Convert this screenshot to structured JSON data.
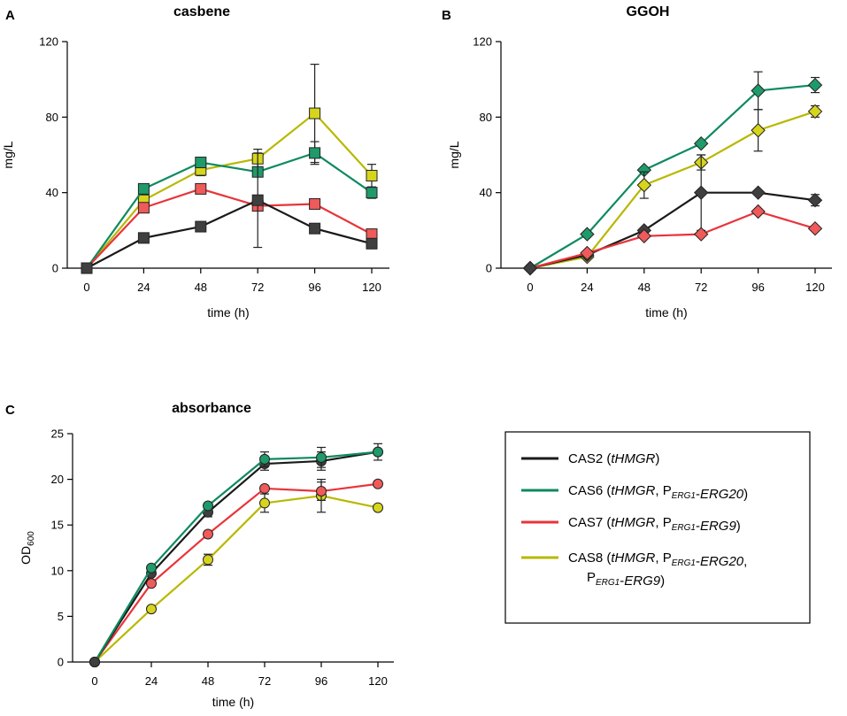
{
  "colors": {
    "CAS2": "#1a1a1a",
    "CAS6": "#0e8a5f",
    "CAS7": "#e8343a",
    "CAS8": "#b8b800",
    "CAS2_fill": "#3f3f3f",
    "CAS6_fill": "#1f9a6a",
    "CAS7_fill": "#f05a5a",
    "CAS8_fill": "#d6d51c"
  },
  "legend": {
    "entries": [
      {
        "series": "CAS2",
        "lines": [
          [
            {
              "t": "CAS2 ("
            },
            {
              "t": "tHMGR",
              "i": true
            },
            {
              "t": ")"
            }
          ]
        ]
      },
      {
        "series": "CAS6",
        "lines": [
          [
            {
              "t": "CAS6 ("
            },
            {
              "t": "tHMGR",
              "i": true
            },
            {
              "t": ", P"
            },
            {
              "t": "ERG1",
              "i": true,
              "sub": true
            },
            {
              "t": "-"
            },
            {
              "t": "ERG20",
              "i": true
            },
            {
              "t": ")"
            }
          ]
        ]
      },
      {
        "series": "CAS7",
        "lines": [
          [
            {
              "t": "CAS7 ("
            },
            {
              "t": "tHMGR",
              "i": true
            },
            {
              "t": ", P"
            },
            {
              "t": "ERG1",
              "i": true,
              "sub": true
            },
            {
              "t": "-"
            },
            {
              "t": "ERG9",
              "i": true
            },
            {
              "t": ")"
            }
          ]
        ]
      },
      {
        "series": "CAS8",
        "lines": [
          [
            {
              "t": "CAS8 ("
            },
            {
              "t": "tHMGR",
              "i": true
            },
            {
              "t": ", P"
            },
            {
              "t": "ERG1",
              "i": true,
              "sub": true
            },
            {
              "t": "-"
            },
            {
              "t": "ERG20",
              "i": true
            },
            {
              "t": ","
            }
          ],
          [
            {
              "t": "P"
            },
            {
              "t": "ERG1",
              "i": true,
              "sub": true
            },
            {
              "t": "-"
            },
            {
              "t": "ERG9",
              "i": true
            },
            {
              "t": ")"
            }
          ]
        ]
      }
    ]
  },
  "chart_data": [
    {
      "panel": "A",
      "type": "line",
      "marker": "square",
      "title": "casbene",
      "xlabel": "time (h)",
      "ylabel": "mg/L",
      "x": [
        0,
        24,
        48,
        72,
        96,
        120
      ],
      "xticks": [
        "0",
        "24",
        "48",
        "72",
        "96",
        "120"
      ],
      "yticks": [
        0,
        40,
        80,
        120
      ],
      "ylim": [
        0,
        120
      ],
      "series": [
        {
          "name": "CAS8",
          "values": [
            0,
            36,
            52,
            58,
            82,
            49
          ],
          "errors": [
            0,
            3,
            3,
            5,
            26,
            6
          ]
        },
        {
          "name": "CAS6",
          "values": [
            0,
            42,
            56,
            51,
            61,
            40
          ],
          "errors": [
            0,
            0,
            0,
            0,
            6,
            3
          ]
        },
        {
          "name": "CAS7",
          "values": [
            0,
            32,
            42,
            33,
            34,
            18
          ],
          "errors": [
            0,
            0,
            0,
            0,
            0,
            0
          ]
        },
        {
          "name": "CAS2",
          "values": [
            0,
            16,
            22,
            36,
            21,
            13
          ],
          "errors": [
            0,
            0,
            0,
            25,
            0,
            0
          ]
        }
      ]
    },
    {
      "panel": "B",
      "type": "line",
      "marker": "diamond",
      "title": "GGOH",
      "xlabel": "time (h)",
      "ylabel": "mg/L",
      "x": [
        0,
        24,
        48,
        72,
        96,
        120
      ],
      "xticks": [
        "0",
        "24",
        "48",
        "72",
        "96",
        "120"
      ],
      "yticks": [
        0,
        40,
        80,
        120
      ],
      "ylim": [
        0,
        120
      ],
      "series": [
        {
          "name": "CAS6",
          "values": [
            0,
            18,
            52,
            66,
            94,
            97
          ],
          "errors": [
            0,
            0,
            0,
            0,
            10,
            4
          ]
        },
        {
          "name": "CAS8",
          "values": [
            0,
            6,
            44,
            56,
            73,
            83
          ],
          "errors": [
            0,
            0,
            7,
            4,
            11,
            3
          ]
        },
        {
          "name": "CAS2",
          "values": [
            0,
            7,
            20,
            40,
            40,
            36
          ],
          "errors": [
            0,
            0,
            0,
            20,
            0,
            3
          ]
        },
        {
          "name": "CAS7",
          "values": [
            0,
            8,
            17,
            18,
            30,
            21
          ],
          "errors": [
            0,
            0,
            0,
            0,
            0,
            0
          ]
        }
      ]
    },
    {
      "panel": "C",
      "type": "line",
      "marker": "circle",
      "title": "absorbance",
      "xlabel": "time (h)",
      "ylabel": "OD",
      "ylabel_sub": "600",
      "x": [
        0,
        24,
        48,
        72,
        96,
        120
      ],
      "xticks": [
        "0",
        "24",
        "48",
        "72",
        "96",
        "120"
      ],
      "yticks": [
        0,
        5,
        10,
        15,
        20,
        25
      ],
      "ylim": [
        0,
        25
      ],
      "series": [
        {
          "name": "CAS8",
          "values": [
            0,
            5.8,
            11.2,
            17.4,
            18.2,
            16.9
          ],
          "errors": [
            0,
            0,
            0.6,
            1.0,
            1.8,
            0
          ]
        },
        {
          "name": "CAS7",
          "values": [
            0,
            8.6,
            14.0,
            19.0,
            18.7,
            19.5
          ],
          "errors": [
            0,
            0,
            0,
            0,
            1.0,
            0
          ]
        },
        {
          "name": "CAS2",
          "values": [
            0,
            9.7,
            16.4,
            21.7,
            22.0,
            23.0
          ],
          "errors": [
            0,
            0,
            0.5,
            0.7,
            1.0,
            0.9
          ]
        },
        {
          "name": "CAS6",
          "values": [
            0,
            10.3,
            17.1,
            22.2,
            22.4,
            23.0
          ],
          "errors": [
            0,
            0,
            0,
            0.8,
            1.1,
            0
          ]
        }
      ]
    }
  ]
}
